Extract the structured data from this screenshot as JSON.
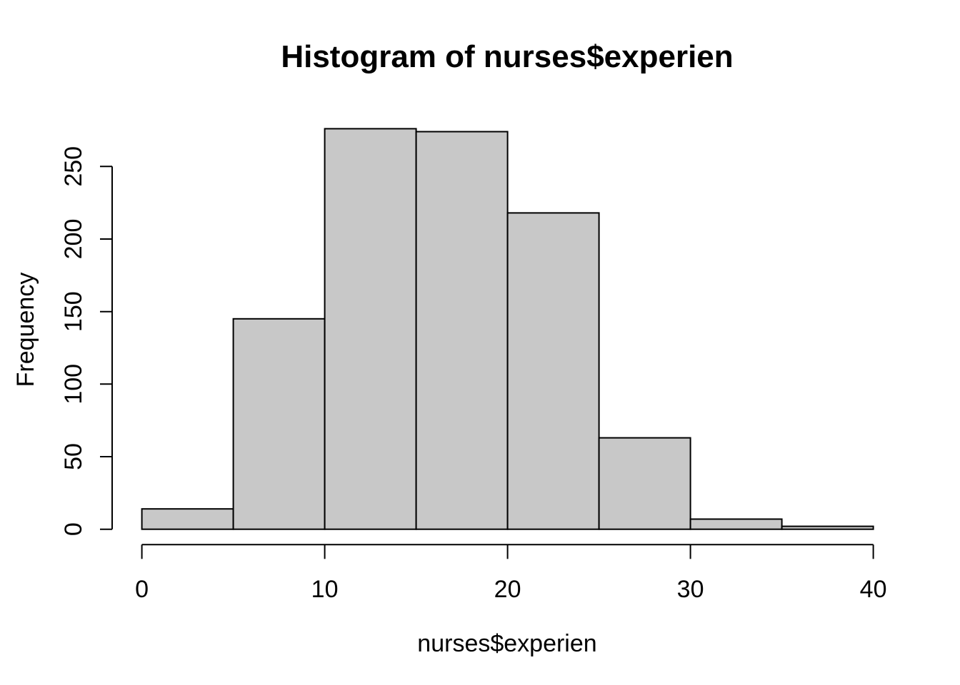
{
  "chart_data": {
    "type": "bar",
    "chart_kind": "histogram",
    "title": "Histogram of nurses$experien",
    "xlabel": "nurses$experien",
    "ylabel": "Frequency",
    "bin_edges": [
      0,
      5,
      10,
      15,
      20,
      25,
      30,
      35,
      40
    ],
    "counts": [
      14,
      145,
      276,
      274,
      218,
      63,
      7,
      2
    ],
    "x_ticks": [
      0,
      10,
      20,
      30,
      40
    ],
    "y_ticks": [
      0,
      50,
      100,
      150,
      200,
      250
    ],
    "xlim": [
      0,
      40
    ],
    "ylim": [
      0,
      276
    ],
    "grid": false,
    "legend_position": "none",
    "colors": {
      "bar_fill": "#C8C8C8",
      "bar_stroke": "#000000",
      "axis": "#000000",
      "text": "#000000",
      "background": "#FFFFFF"
    }
  }
}
